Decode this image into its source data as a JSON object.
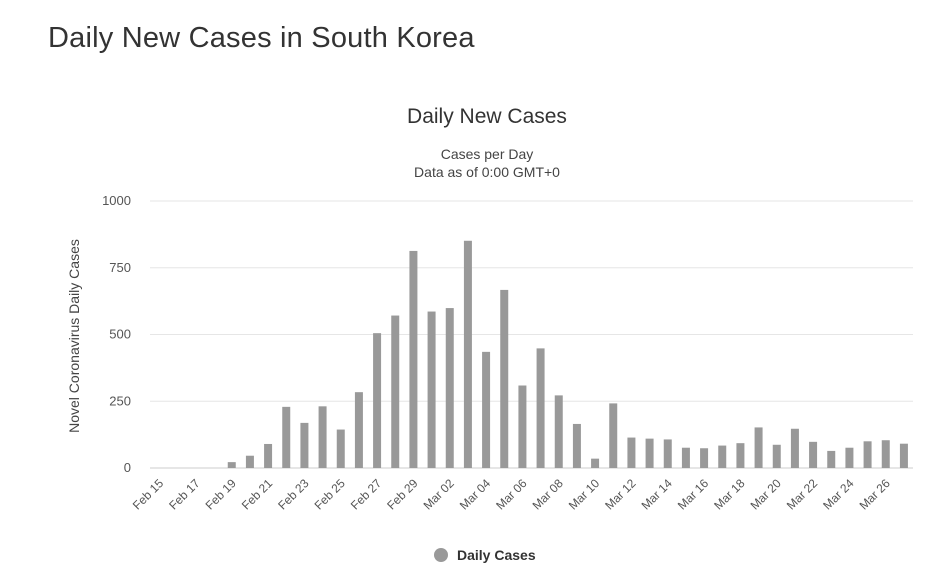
{
  "page": {
    "title": "Daily New Cases in South Korea"
  },
  "chart_data": {
    "type": "bar",
    "title": "Daily New Cases",
    "subtitle_lines": [
      "Cases per Day",
      "Data as of 0:00 GMT+0"
    ],
    "xlabel": "",
    "ylabel": "Novel Coronavirus Daily Cases",
    "ylim": [
      0,
      1000
    ],
    "yticks": [
      0,
      250,
      500,
      750,
      1000
    ],
    "grid": true,
    "legend": {
      "position": "bottom-center",
      "marker": "circle"
    },
    "categories": [
      "Feb 15",
      "Feb 16",
      "Feb 17",
      "Feb 18",
      "Feb 19",
      "Feb 20",
      "Feb 21",
      "Feb 22",
      "Feb 23",
      "Feb 24",
      "Feb 25",
      "Feb 26",
      "Feb 27",
      "Feb 28",
      "Feb 29",
      "Mar 01",
      "Mar 02",
      "Mar 03",
      "Mar 04",
      "Mar 05",
      "Mar 06",
      "Mar 07",
      "Mar 08",
      "Mar 09",
      "Mar 10",
      "Mar 11",
      "Mar 12",
      "Mar 13",
      "Mar 14",
      "Mar 15",
      "Mar 16",
      "Mar 17",
      "Mar 18",
      "Mar 19",
      "Mar 20",
      "Mar 21",
      "Mar 22",
      "Mar 23",
      "Mar 24",
      "Mar 25",
      "Mar 26",
      "Mar 27"
    ],
    "tick_labels": [
      "Feb 15",
      "Feb 17",
      "Feb 19",
      "Feb 21",
      "Feb 23",
      "Feb 25",
      "Feb 27",
      "Feb 29",
      "Mar 02",
      "Mar 04",
      "Mar 06",
      "Mar 08",
      "Mar 10",
      "Mar 12",
      "Mar 14",
      "Mar 16",
      "Mar 18",
      "Mar 20",
      "Mar 22",
      "Mar 24",
      "Mar 26"
    ],
    "series": [
      {
        "name": "Daily Cases",
        "color": "#999999",
        "values": [
          0,
          0,
          0,
          0,
          22,
          46,
          90,
          229,
          169,
          231,
          144,
          284,
          505,
          571,
          813,
          586,
          599,
          851,
          435,
          667,
          309,
          448,
          272,
          165,
          35,
          242,
          114,
          110,
          107,
          76,
          74,
          84,
          93,
          152,
          87,
          147,
          98,
          64,
          76,
          100,
          104,
          91
        ]
      }
    ]
  }
}
